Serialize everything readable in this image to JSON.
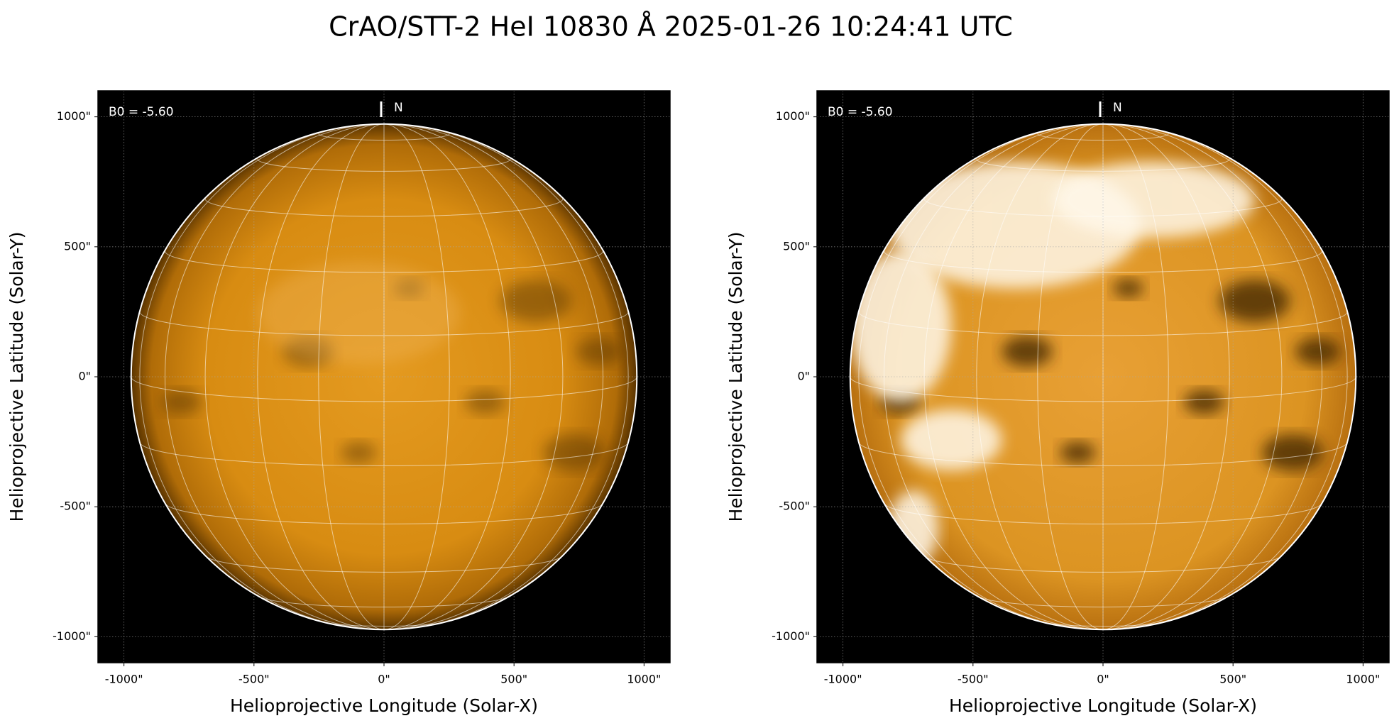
{
  "suptitle": "CrAO/STT-2 HeI 10830 Å 2025-01-26 10:24:41 UTC",
  "chart_data": [
    {
      "type": "image",
      "style": "normal",
      "xlabel": "Helioprojective Longitude (Solar-X)",
      "ylabel": "Helioprojective Latitude (Solar-Y)",
      "annotation": "B0 = -5.60",
      "north_label": "N",
      "xlim": [
        -1100,
        1100
      ],
      "ylim": [
        -1100,
        1100
      ],
      "grid": true,
      "xticks": [
        {
          "value": -1000,
          "label": "-1000\""
        },
        {
          "value": -500,
          "label": "-500\""
        },
        {
          "value": 0,
          "label": "0\""
        },
        {
          "value": 500,
          "label": "500\""
        },
        {
          "value": 1000,
          "label": "1000\""
        }
      ],
      "yticks": [
        {
          "value": -1000,
          "label": "-1000\""
        },
        {
          "value": -500,
          "label": "-500\""
        },
        {
          "value": 0,
          "label": "0\""
        },
        {
          "value": 500,
          "label": "500\""
        },
        {
          "value": 1000,
          "label": "1000\""
        }
      ]
    },
    {
      "type": "image",
      "style": "enhanced",
      "xlabel": "Helioprojective Longitude (Solar-X)",
      "ylabel": "Helioprojective Latitude (Solar-Y)",
      "annotation": "B0 = -5.60",
      "north_label": "N",
      "xlim": [
        -1100,
        1100
      ],
      "ylim": [
        -1100,
        1100
      ],
      "grid": true,
      "xticks": [
        {
          "value": -1000,
          "label": "-1000\""
        },
        {
          "value": -500,
          "label": "-500\""
        },
        {
          "value": 0,
          "label": "0\""
        },
        {
          "value": 500,
          "label": "500\""
        },
        {
          "value": 1000,
          "label": "1000\""
        }
      ],
      "yticks": [
        {
          "value": -1000,
          "label": "-1000\""
        },
        {
          "value": -500,
          "label": "-500\""
        },
        {
          "value": 0,
          "label": "0\""
        },
        {
          "value": 500,
          "label": "500\""
        },
        {
          "value": 1000,
          "label": "1000\""
        }
      ]
    }
  ]
}
